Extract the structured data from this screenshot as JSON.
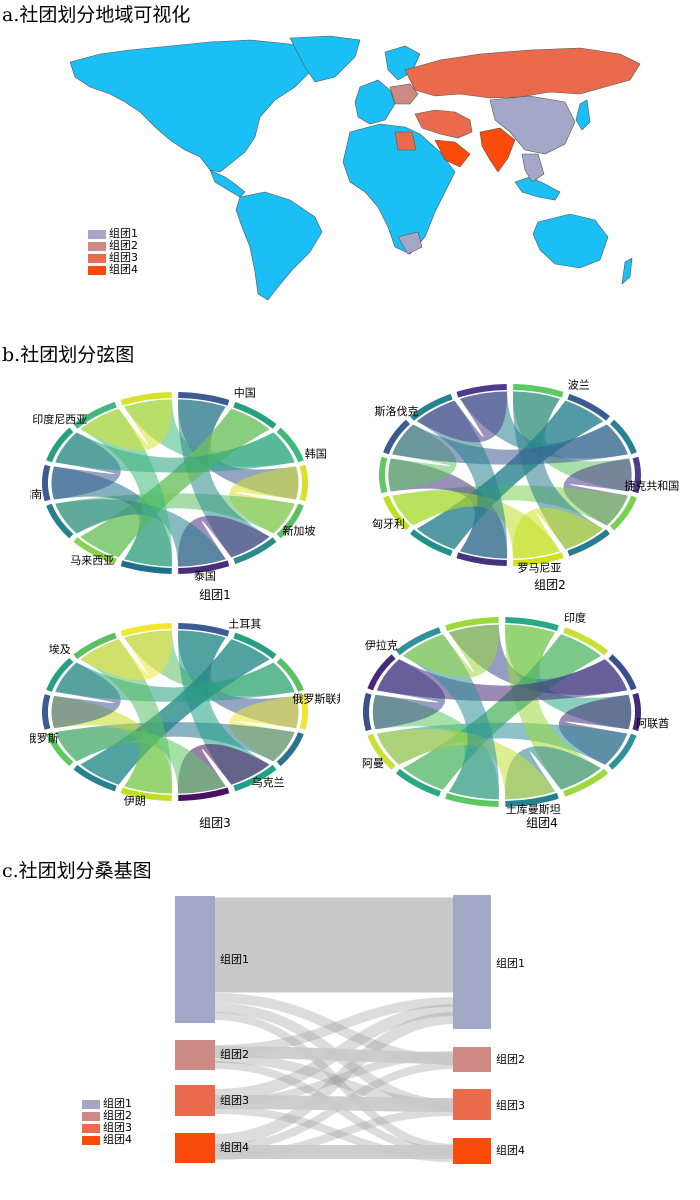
{
  "titles": {
    "a": "a.社团划分地域可视化",
    "b": "b.社团划分弦图",
    "c": "c.社团划分桑基图"
  },
  "colors": {
    "group1": "#a3a8c9",
    "group2": "#cd8a85",
    "group3": "#ea6a4d",
    "group4": "#fb4b0b",
    "unassigned": "#1abff5",
    "flow": "#c9c9c9"
  },
  "legend": [
    "组团1",
    "组团2",
    "组团3",
    "组团4"
  ],
  "chords": [
    {
      "caption": "组团1",
      "labels": [
        "中国",
        "韩国",
        "新加坡",
        "泰国",
        "马来西亚",
        "越南",
        "印度尼西亚"
      ],
      "colors": [
        "#3b5b92",
        "#27a07f",
        "#3fb97b",
        "#d8e22c",
        "#5cbf66",
        "#2c8a8a",
        "#4a2e7d",
        "#1f6f8b",
        "#8ad24f",
        "#26828e"
      ]
    },
    {
      "caption": "组团2",
      "labels": [
        "波兰",
        "捷克共和国",
        "罗马尼亚",
        "匈牙利",
        "斯洛伐克"
      ],
      "colors": [
        "#5ec962",
        "#3b5b92",
        "#26828e",
        "#4f3b8c",
        "#7ad151",
        "#2a7b8e",
        "#d0e11c",
        "#46337e",
        "#21918c",
        "#bddf26"
      ]
    },
    {
      "caption": "组团3",
      "labels": [
        "土耳其",
        "俄罗斯联邦",
        "乌克兰",
        "伊朗",
        "白俄罗斯",
        "埃及"
      ],
      "colors": [
        "#3b5b92",
        "#27a07f",
        "#5cbf66",
        "#f1e535",
        "#2c728e",
        "#1fa187",
        "#471164",
        "#c2df23",
        "#26828e",
        "#5ec962"
      ]
    },
    {
      "caption": "组团4",
      "labels": [
        "印度",
        "阿联酋",
        "土库曼斯坦",
        "阿曼",
        "伊拉克"
      ],
      "colors": [
        "#29a884",
        "#c7e03a",
        "#3a4f8e",
        "#462a7a",
        "#30919a",
        "#9bd93c",
        "#26828e",
        "#5cc863"
      ]
    }
  ],
  "sankey": {
    "left_labels": [
      "组团1",
      "组团2",
      "组团3",
      "组团4"
    ],
    "right_labels": [
      "组团1",
      "组团2",
      "组团3",
      "组团4"
    ]
  }
}
